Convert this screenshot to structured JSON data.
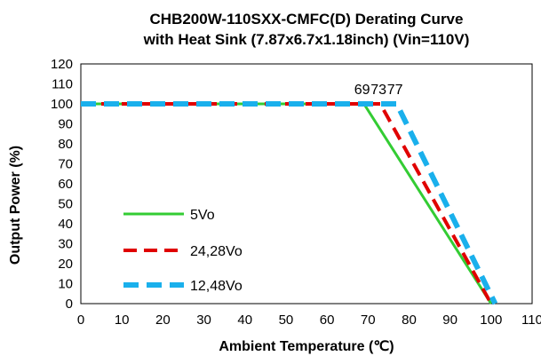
{
  "chart_data": {
    "type": "line",
    "title_lines": [
      "CHB200W-110SXX-CMFC(D)  Derating Curve",
      "with Heat Sink (7.87x6.7x1.18inch) (Vin=110V)"
    ],
    "xlabel": "Ambient Temperature (℃)",
    "ylabel": "Output Power (%)",
    "xlim": [
      0,
      110
    ],
    "ylim": [
      0,
      120
    ],
    "xticks": [
      "0",
      "10",
      "20",
      "30",
      "40",
      "50",
      "60",
      "70",
      "80",
      "90",
      "100",
      "110"
    ],
    "yticks": [
      "0",
      "10",
      "20",
      "30",
      "40",
      "50",
      "60",
      "70",
      "80",
      "90",
      "100",
      "110",
      "120"
    ],
    "grid": false,
    "legend_position": "left",
    "series": [
      {
        "name": "5Vo",
        "color": "#33cc33",
        "dash": "solid",
        "x": [
          0,
          69,
          100
        ],
        "y": [
          100,
          100,
          0
        ]
      },
      {
        "name": "24,28Vo",
        "color": "#e00000",
        "dash": "dashed",
        "x": [
          0,
          73,
          100
        ],
        "y": [
          100,
          100,
          0
        ]
      },
      {
        "name": "12,48Vo",
        "color": "#1ab0ec",
        "dash": "dashed",
        "x": [
          0,
          77,
          101
        ],
        "y": [
          100,
          100,
          0
        ]
      }
    ],
    "annotations": [
      {
        "text": "69",
        "x": 69,
        "y": 100
      },
      {
        "text": "73",
        "x": 73,
        "y": 100
      },
      {
        "text": "77",
        "x": 77,
        "y": 100
      }
    ]
  }
}
